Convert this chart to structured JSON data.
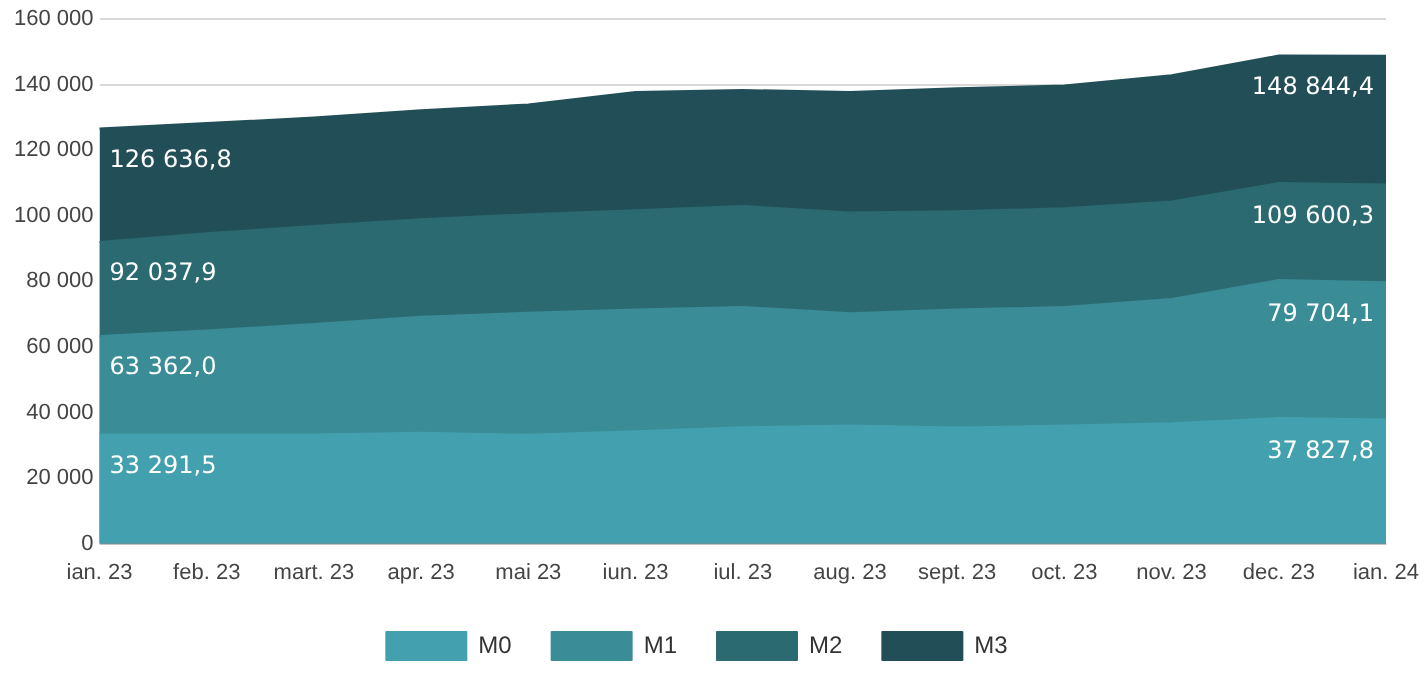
{
  "chart_data": {
    "type": "area",
    "categories": [
      "ian. 23",
      "feb. 23",
      "mart. 23",
      "apr. 23",
      "mai 23",
      "iun. 23",
      "iul. 23",
      "aug. 23",
      "sept. 23",
      "oct. 23",
      "nov. 23",
      "dec. 23",
      "ian. 24"
    ],
    "series": [
      {
        "name": "M0",
        "color": "#43a0ae",
        "values": [
          33291.5,
          33300,
          33300,
          33800,
          33200,
          34300,
          35500,
          36000,
          35400,
          36000,
          36700,
          38300,
          37827.8
        ],
        "value_labels": [
          "33 291,5",
          null,
          null,
          null,
          null,
          null,
          null,
          null,
          null,
          null,
          null,
          null,
          "37 827,8"
        ]
      },
      {
        "name": "M1",
        "color": "#3a8c97",
        "values": [
          63362.0,
          65000,
          67000,
          69200,
          70400,
          71400,
          72200,
          70300,
          71400,
          72200,
          74600,
          80400,
          79704.1
        ],
        "value_labels": [
          "63 362,0",
          null,
          null,
          null,
          null,
          null,
          null,
          null,
          null,
          null,
          null,
          null,
          "79 704,1"
        ]
      },
      {
        "name": "M2",
        "color": "#2c6a72",
        "values": [
          92037.9,
          94700,
          96900,
          99000,
          100500,
          101700,
          103000,
          101000,
          101400,
          102300,
          104400,
          110000,
          109600.3
        ],
        "value_labels": [
          "92 037,9",
          null,
          null,
          null,
          null,
          null,
          null,
          null,
          null,
          null,
          null,
          null,
          "109 600,3"
        ]
      },
      {
        "name": "M3",
        "color": "#224f57",
        "values": [
          126636.8,
          128300,
          130000,
          132200,
          134000,
          137800,
          138400,
          137800,
          138900,
          139800,
          142900,
          148900,
          148844.4
        ],
        "value_labels": [
          "126 636,8",
          null,
          null,
          null,
          null,
          null,
          null,
          null,
          null,
          null,
          null,
          null,
          "148 844,4"
        ]
      }
    ],
    "ylim": [
      0,
      160000
    ],
    "yticks": [
      {
        "value": 0,
        "label": "0"
      },
      {
        "value": 20000,
        "label": "20 000"
      },
      {
        "value": 40000,
        "label": "40 000"
      },
      {
        "value": 60000,
        "label": "60 000"
      },
      {
        "value": 80000,
        "label": "80 000"
      },
      {
        "value": 100000,
        "label": "100 000"
      },
      {
        "value": 120000,
        "label": "120 000"
      },
      {
        "value": 140000,
        "label": "140 000"
      },
      {
        "value": 160000,
        "label": "160 000"
      }
    ],
    "grid": "y",
    "legend": "bottom"
  }
}
